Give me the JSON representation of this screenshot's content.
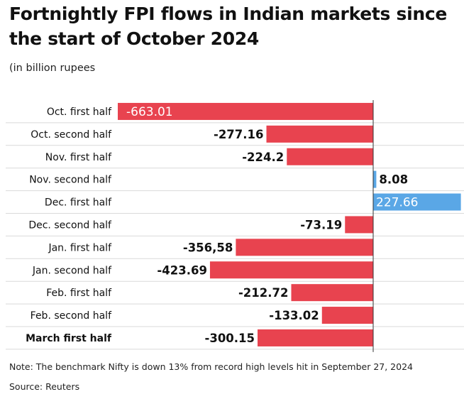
{
  "title": "Fortnightly FPI flows in Indian markets since the start of October 2024",
  "subtitle": "(in billion rupees",
  "note": "Note: The benchmark Nifty is down 13% from record high levels hit in September 27, 2024",
  "source": "Source: Reuters",
  "colors": {
    "negative": "#e8434f",
    "positive": "#5aa7e6",
    "zero_line": "#333333",
    "grid": "#d9d9d9"
  },
  "chart_data": {
    "type": "bar",
    "orientation": "horizontal",
    "categories": [
      "Oct. first half",
      "Oct. second half",
      "Nov. first half",
      "Nov. second half",
      "Dec. first half",
      "Dec. second half",
      "Jan. first half",
      "Jan. second half",
      "Feb. first half",
      "Feb. second half",
      "March first half"
    ],
    "values": [
      -663.01,
      -277.16,
      -224.2,
      8.08,
      227.66,
      -73.19,
      -356.58,
      -423.69,
      -212.72,
      -133.02,
      -300.15
    ],
    "value_labels": [
      "-663.01",
      "-277.16",
      "-224.2",
      "8.08",
      "227.66",
      "-73.19",
      "-356,58",
      "-423.69",
      "-212.72",
      "-133.02",
      "-300.15"
    ],
    "bold_categories": [
      "March first half"
    ],
    "xlim": [
      -663.01,
      227.66
    ],
    "grid": true,
    "legend": "none"
  }
}
